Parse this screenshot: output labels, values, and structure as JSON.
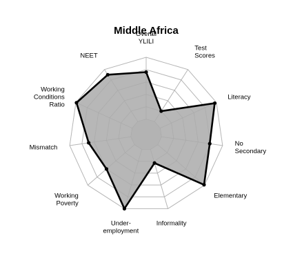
{
  "chart_data": {
    "type": "radar",
    "title": "Middle Africa",
    "axes": [
      [
        "Overall",
        "YLILI"
      ],
      [
        "Test",
        "Scores"
      ],
      [
        "Literacy"
      ],
      [
        "No",
        "Secondary"
      ],
      [
        "Elementary"
      ],
      [
        "Informality"
      ],
      [
        "Under-",
        "employment"
      ],
      [
        "Working",
        "Poverty"
      ],
      [
        "Mismatch"
      ],
      [
        "Working",
        "Conditions",
        "Ratio"
      ],
      [
        "NEET"
      ]
    ],
    "values": [
      0.76,
      0.2,
      0.97,
      0.79,
      0.99,
      0.23,
      1.0,
      0.6,
      0.69,
      0.99,
      0.9
    ],
    "range": [
      0,
      1
    ],
    "rings": 5,
    "inner_hole": 0.2,
    "colors": {
      "fill": "#b3b3b3",
      "line": "#000000",
      "grid": "#c8c8c8"
    }
  }
}
